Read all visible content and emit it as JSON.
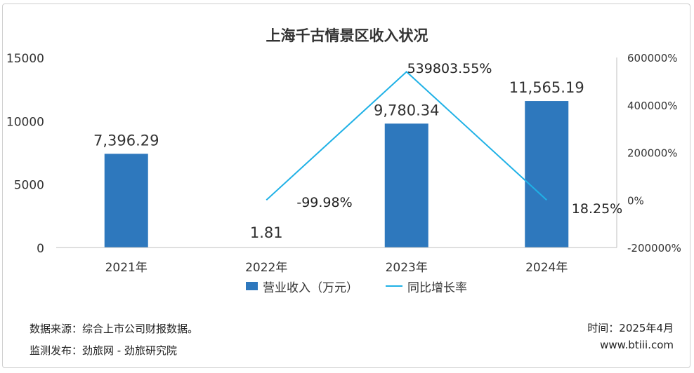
{
  "chart_data": {
    "type": "bar",
    "title": "上海千古情景区收入状况",
    "categories": [
      "2021年",
      "2022年",
      "2023年",
      "2024年"
    ],
    "series": [
      {
        "name": "营业收入（万元）",
        "kind": "bar",
        "axis": "left",
        "values": [
          7396.29,
          1.81,
          9780.34,
          11565.19
        ],
        "labels": [
          "7,396.29",
          "1.81",
          "9,780.34",
          "11,565.19"
        ],
        "color": "#2e78bd"
      },
      {
        "name": "同比增长率",
        "kind": "line",
        "axis": "right",
        "values": [
          null,
          -99.98,
          539803.55,
          18.25
        ],
        "labels": [
          "",
          "-99.98%",
          "539803.55%",
          "18.25%"
        ],
        "color": "#1fb1e6"
      }
    ],
    "left_axis": {
      "ylim": [
        0,
        15000
      ],
      "ticks": [
        "0",
        "5000",
        "10000",
        "15000"
      ]
    },
    "right_axis": {
      "ylim": [
        -200000,
        600000
      ],
      "ticks": [
        "-200000%",
        "0%",
        "200000%",
        "400000%",
        "600000%"
      ]
    },
    "legend": "bottom",
    "grid": false
  },
  "footer": {
    "source": "数据来源：综合上市公司财报数据。",
    "publisher": "监测发布：劲旅网 - 劲旅研究院",
    "time": "时间：2025年4月",
    "website": "www.btiii.com"
  }
}
